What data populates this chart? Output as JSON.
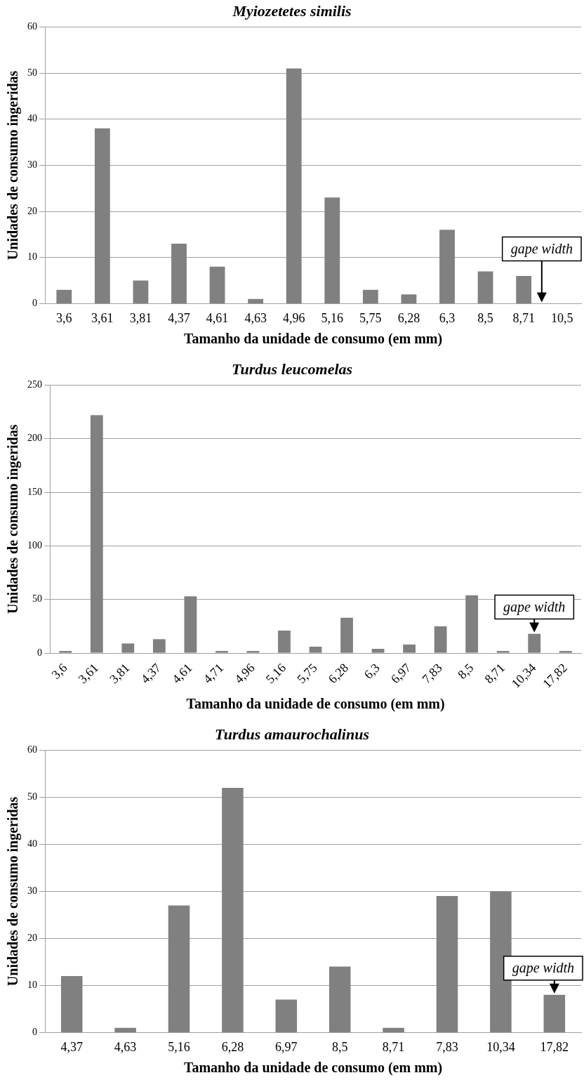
{
  "chart_data": [
    {
      "type": "bar",
      "title": "Myiozetetes similis",
      "xlabel": "Tamanho da unidade de consumo (em mm)",
      "ylabel": "Unidades de consumo ingeridas",
      "categories": [
        "3,6",
        "3,61",
        "3,81",
        "4,37",
        "4,61",
        "4,63",
        "4,96",
        "5,16",
        "5,75",
        "6,28",
        "6,3",
        "8,5",
        "8,71",
        "10,5"
      ],
      "values": [
        3,
        38,
        5,
        13,
        8,
        1,
        51,
        23,
        3,
        2,
        16,
        7,
        6,
        null
      ],
      "color": "#808080",
      "ylim": [
        0,
        60
      ],
      "yticks": [
        0,
        10,
        20,
        30,
        40,
        50,
        60
      ],
      "grid": "y",
      "legend": false,
      "annotations": [
        "gape width"
      ]
    },
    {
      "type": "bar",
      "title": "Turdus leucomelas",
      "xlabel": "Tamanho da unidade de consumo (em mm)",
      "ylabel": "Unidades de consumo ingeridas",
      "categories": [
        "3,6",
        "3,61",
        "3,81",
        "4,37",
        "4,61",
        "4,71",
        "4,96",
        "5,16",
        "5,75",
        "6,28",
        "6,3",
        "6,97",
        "7,83",
        "8,5",
        "8,71",
        "10,34",
        "17,82"
      ],
      "values": [
        2,
        222,
        9,
        13,
        53,
        2,
        2,
        21,
        6,
        33,
        4,
        8,
        25,
        54,
        2,
        18,
        2
      ],
      "color": "#808080",
      "ylim": [
        0,
        250
      ],
      "yticks": [
        0,
        50,
        100,
        150,
        200,
        250
      ],
      "grid": "y",
      "legend": false,
      "annotations": [
        {
          "text": "gape width",
          "x": "10,34",
          "y": 18
        }
      ]
    },
    {
      "type": "bar",
      "title": "Turdus amaurochalinus",
      "xlabel": "Tamanho da unidade de consumo (em mm)",
      "ylabel": "Unidades de consumo ingeridas",
      "categories": [
        "4,37",
        "4,63",
        "5,16",
        "6,28",
        "6,97",
        "8,5",
        "8,71",
        "7,83",
        "10,34",
        "17,82"
      ],
      "values": [
        12,
        1,
        27,
        52,
        7,
        14,
        1,
        29,
        30,
        8
      ],
      "color": "#808080",
      "ylim": [
        0,
        60
      ],
      "yticks": [
        0,
        10,
        20,
        30,
        40,
        50,
        60
      ],
      "grid": "y",
      "legend": false,
      "annotations": [
        {
          "text": "gape width",
          "x": "17,82",
          "y": 8
        }
      ]
    }
  ]
}
